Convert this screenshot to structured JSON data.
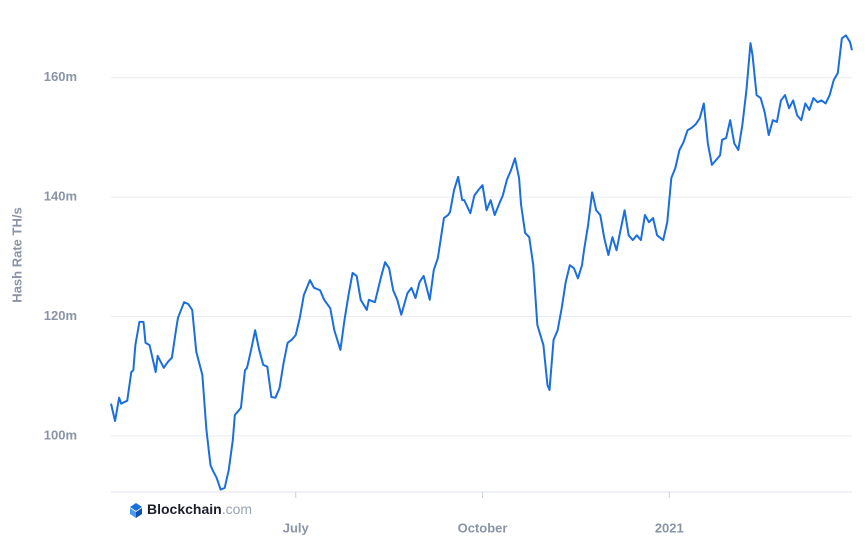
{
  "chart_data": {
    "type": "line",
    "y_label": "Hash Rate TH/s",
    "brand": {
      "name": "Blockchain",
      "suffix": ".com"
    },
    "color": "#1a6ee0",
    "grid": true,
    "x": [
      0,
      2,
      4,
      5,
      8,
      10,
      11,
      12,
      14,
      16,
      17,
      19,
      22,
      23,
      26,
      28,
      30,
      32,
      33,
      36,
      38,
      40,
      42,
      45,
      47,
      49,
      50,
      52,
      54,
      56,
      58,
      60,
      61,
      64,
      66,
      67,
      69,
      71,
      73,
      75,
      77,
      79,
      81,
      83,
      85,
      87,
      89,
      91,
      93,
      95,
      98,
      100,
      103,
      105,
      108,
      110,
      113,
      115,
      117,
      119,
      121,
      123,
      126,
      127,
      130,
      133,
      135,
      137,
      139,
      141,
      143,
      146,
      148,
      150,
      152,
      154,
      157,
      159,
      161,
      164,
      166,
      167,
      169,
      171,
      173,
      174,
      177,
      179,
      181,
      183,
      185,
      187,
      189,
      191,
      193,
      195,
      197,
      199,
      201,
      202,
      204,
      206,
      208,
      210,
      213,
      215,
      216,
      218,
      220,
      222,
      224,
      226,
      228,
      230,
      232,
      233,
      235,
      237,
      239,
      241,
      243,
      245,
      247,
      249,
      251,
      253,
      255,
      257,
      259,
      261,
      263,
      265,
      267,
      269,
      272,
      274,
      276,
      278,
      280,
      282,
      284,
      286,
      288,
      290,
      292,
      294,
      296,
      298,
      300,
      301,
      303,
      305,
      307,
      309,
      311,
      313,
      315,
      316,
      318,
      320,
      322,
      324,
      326,
      328,
      330,
      332,
      334,
      336,
      338,
      340,
      342,
      344,
      346,
      348,
      350,
      352,
      354,
      356,
      358,
      360,
      362,
      364,
      365
    ],
    "values": [
      105.4,
      102.5,
      106.4,
      105.4,
      105.9,
      110.7,
      111.0,
      115.2,
      119.1,
      119.1,
      115.6,
      115.2,
      110.7,
      113.4,
      111.4,
      112.4,
      113.1,
      117.7,
      119.8,
      122.4,
      122.1,
      121.1,
      114.1,
      110.2,
      101.0,
      95.1,
      94.3,
      93.0,
      91.0,
      91.3,
      94.3,
      99.3,
      103.5,
      104.7,
      111.0,
      111.4,
      114.4,
      117.7,
      114.4,
      111.9,
      111.6,
      106.5,
      106.4,
      108.0,
      112.2,
      115.6,
      116.1,
      116.9,
      119.8,
      123.6,
      126.1,
      124.8,
      124.4,
      122.8,
      121.4,
      117.7,
      114.4,
      119.4,
      123.6,
      127.3,
      126.8,
      122.8,
      121.1,
      122.8,
      122.4,
      126.6,
      129.1,
      128.1,
      124.4,
      122.8,
      120.3,
      123.9,
      124.8,
      123.1,
      125.8,
      126.8,
      122.8,
      127.8,
      129.8,
      136.5,
      137.0,
      137.5,
      141.2,
      143.4,
      139.5,
      139.5,
      137.3,
      140.3,
      141.2,
      142.0,
      137.8,
      139.5,
      137.0,
      138.7,
      140.3,
      142.9,
      144.5,
      146.5,
      143.2,
      138.7,
      134.0,
      133.3,
      128.6,
      118.6,
      115.2,
      108.5,
      107.7,
      116.1,
      117.7,
      121.4,
      125.8,
      128.6,
      128.1,
      126.4,
      128.6,
      131.1,
      135.3,
      140.8,
      137.8,
      137.0,
      133.1,
      130.3,
      133.3,
      131.1,
      134.5,
      137.8,
      133.6,
      132.8,
      133.6,
      132.8,
      137.0,
      135.8,
      136.5,
      133.6,
      132.8,
      135.8,
      143.2,
      144.9,
      147.9,
      149.2,
      151.2,
      151.6,
      152.2,
      153.2,
      155.7,
      149.0,
      145.4,
      146.2,
      147.0,
      149.6,
      149.9,
      152.9,
      149.0,
      147.9,
      152.1,
      157.9,
      165.8,
      163.8,
      157.1,
      156.6,
      154.2,
      150.4,
      152.9,
      152.6,
      156.2,
      157.1,
      154.9,
      156.2,
      153.7,
      152.9,
      155.7,
      154.6,
      156.6,
      155.9,
      156.2,
      155.7,
      157.1,
      159.6,
      160.8,
      166.6,
      167.1,
      166.0,
      164.6
    ],
    "xlim": [
      0,
      365
    ],
    "xticks": [
      {
        "value": 91,
        "label": "July"
      },
      {
        "value": 183,
        "label": "October"
      },
      {
        "value": 275,
        "label": "2021"
      }
    ],
    "ylim": [
      90.6,
      168
    ],
    "yticks": [
      {
        "value": 100,
        "label": "100m"
      },
      {
        "value": 120,
        "label": "120m"
      },
      {
        "value": 140,
        "label": "140m"
      },
      {
        "value": 160,
        "label": "160m"
      }
    ]
  }
}
